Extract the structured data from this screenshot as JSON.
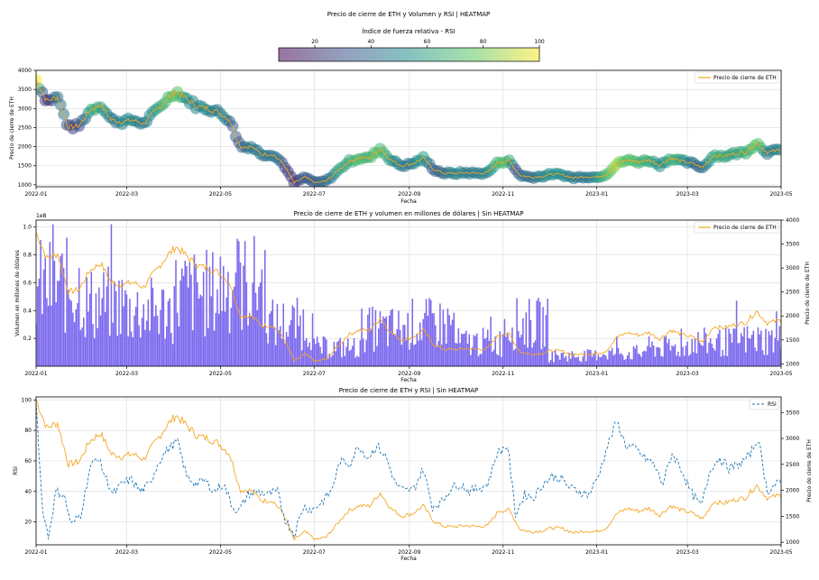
{
  "figure": {
    "suptitle": "Precio de cierre de ETH y Volumen y RSI | HEATMAP"
  },
  "colorbar": {
    "label": "Índice de fuerza relativa - RSI",
    "ticks": [
      "20",
      "40",
      "60",
      "80",
      "100"
    ],
    "range": [
      0,
      100
    ],
    "colormap": "viridis",
    "alpha": 0.55
  },
  "x_ticks": [
    "2022-01",
    "2022-03",
    "2022-05",
    "2022-07",
    "2022-09",
    "2022-11",
    "2023-01",
    "2023-03",
    "2023-05"
  ],
  "chart_data": [
    {
      "id": "heatmap_price",
      "type": "scatter",
      "title": "",
      "xlabel": "Fecha",
      "ylabel": "Precio de cierre de ETH",
      "xlim": [
        "2022-01-01",
        "2023-05-01"
      ],
      "ylim": [
        950,
        4000
      ],
      "y_ticks": [
        "1000",
        "1500",
        "2000",
        "2500",
        "3000",
        "3500",
        "4000"
      ],
      "legend": {
        "position": "top-right",
        "entries": [
          "Precio de cierre de ETH"
        ]
      },
      "grid": true,
      "series": [
        {
          "name": "Precio de cierre de ETH",
          "color": "#f5a623",
          "mark": "line"
        },
        {
          "marker": "circle",
          "color_by": "RSI"
        }
      ],
      "note": "price points colored by RSI (see rsi_price series)"
    },
    {
      "id": "volume_price",
      "type": "bar",
      "title": "Precio de cierre de ETH y volumen en millones de dólares | Sin HEATMAP",
      "xlabel": "Fecha",
      "ylabel": "Volumen en millones de dólares",
      "y2label": "Precio de cierre de ETH",
      "xlim": [
        "2022-01-01",
        "2023-05-01"
      ],
      "ylim": [
        0,
        105000000.0
      ],
      "y_offset_text": "1e8",
      "y_ticks": [
        "0.2",
        "0.4",
        "0.6",
        "0.8",
        "1.0"
      ],
      "y2lim": [
        950,
        4000
      ],
      "y2_ticks": [
        "1000",
        "1500",
        "2000",
        "2500",
        "3000",
        "3500",
        "4000"
      ],
      "legend": {
        "position": "top-right",
        "entries": [
          "Precio de cierre de ETH"
        ]
      },
      "grid": true,
      "bar_color": "#7b68ee",
      "line_color": "#f5a623",
      "volume_monthly": [
        {
          "month": "2022-01",
          "volume": 60000000.0
        },
        {
          "month": "2022-02",
          "volume": 47000000.0
        },
        {
          "month": "2022-03",
          "volume": 42000000.0
        },
        {
          "month": "2022-04",
          "volume": 55000000.0
        },
        {
          "month": "2022-05",
          "volume": 62000000.0
        },
        {
          "month": "2022-06",
          "volume": 32000000.0
        },
        {
          "month": "2022-07",
          "volume": 14000000.0
        },
        {
          "month": "2022-08",
          "volume": 28000000.0
        },
        {
          "month": "2022-09",
          "volume": 32000000.0
        },
        {
          "month": "2022-10",
          "volume": 18000000.0
        },
        {
          "month": "2022-11",
          "volume": 32000000.0
        },
        {
          "month": "2022-12",
          "volume": 8000000.0
        },
        {
          "month": "2023-01",
          "volume": 10000000.0
        },
        {
          "month": "2023-02",
          "volume": 14000000.0
        },
        {
          "month": "2023-03",
          "volume": 18000000.0
        },
        {
          "month": "2023-04",
          "volume": 20000000.0
        }
      ]
    },
    {
      "id": "rsi_price",
      "type": "line",
      "title": "Precio de cierre de ETH y RSI | Sin HEATMAP",
      "xlabel": "Fecha",
      "ylabel": "RSI",
      "y2label": "Precio de cierre de ETH",
      "xlim": [
        "2022-01-01",
        "2023-05-01"
      ],
      "ylim": [
        5,
        102
      ],
      "y_ticks": [
        "20",
        "40",
        "60",
        "80",
        "100"
      ],
      "y2lim": [
        950,
        3800
      ],
      "y2_ticks": [
        "1000",
        "1500",
        "2000",
        "2500",
        "3000",
        "3500"
      ],
      "legend": {
        "position": "top-right",
        "entries": [
          "RSI"
        ]
      },
      "grid": true,
      "rsi_color": "#1f77b4",
      "price_color": "#f5a623",
      "price": [
        {
          "date": "2022-01-01",
          "v": 3750
        },
        {
          "date": "2022-01-08",
          "v": 3200
        },
        {
          "date": "2022-01-15",
          "v": 3300
        },
        {
          "date": "2022-01-22",
          "v": 2500
        },
        {
          "date": "2022-01-29",
          "v": 2550
        },
        {
          "date": "2022-02-05",
          "v": 2950
        },
        {
          "date": "2022-02-12",
          "v": 3100
        },
        {
          "date": "2022-02-19",
          "v": 2700
        },
        {
          "date": "2022-02-26",
          "v": 2650
        },
        {
          "date": "2022-03-05",
          "v": 2700
        },
        {
          "date": "2022-03-12",
          "v": 2600
        },
        {
          "date": "2022-03-19",
          "v": 2900
        },
        {
          "date": "2022-03-26",
          "v": 3200
        },
        {
          "date": "2022-04-02",
          "v": 3450
        },
        {
          "date": "2022-04-09",
          "v": 3250
        },
        {
          "date": "2022-04-16",
          "v": 3050
        },
        {
          "date": "2022-04-23",
          "v": 3000
        },
        {
          "date": "2022-04-30",
          "v": 2900
        },
        {
          "date": "2022-05-07",
          "v": 2700
        },
        {
          "date": "2022-05-14",
          "v": 2000
        },
        {
          "date": "2022-05-21",
          "v": 2000
        },
        {
          "date": "2022-05-28",
          "v": 1800
        },
        {
          "date": "2022-06-04",
          "v": 1800
        },
        {
          "date": "2022-06-11",
          "v": 1550
        },
        {
          "date": "2022-06-18",
          "v": 1050
        },
        {
          "date": "2022-06-25",
          "v": 1200
        },
        {
          "date": "2022-07-02",
          "v": 1050
        },
        {
          "date": "2022-07-09",
          "v": 1100
        },
        {
          "date": "2022-07-16",
          "v": 1350
        },
        {
          "date": "2022-07-23",
          "v": 1600
        },
        {
          "date": "2022-07-30",
          "v": 1700
        },
        {
          "date": "2022-08-06",
          "v": 1700
        },
        {
          "date": "2022-08-13",
          "v": 1950
        },
        {
          "date": "2022-08-20",
          "v": 1650
        },
        {
          "date": "2022-08-27",
          "v": 1500
        },
        {
          "date": "2022-09-03",
          "v": 1550
        },
        {
          "date": "2022-09-10",
          "v": 1700
        },
        {
          "date": "2022-09-17",
          "v": 1400
        },
        {
          "date": "2022-09-24",
          "v": 1300
        },
        {
          "date": "2022-10-01",
          "v": 1300
        },
        {
          "date": "2022-10-08",
          "v": 1320
        },
        {
          "date": "2022-10-15",
          "v": 1300
        },
        {
          "date": "2022-10-22",
          "v": 1320
        },
        {
          "date": "2022-10-29",
          "v": 1600
        },
        {
          "date": "2022-11-05",
          "v": 1620
        },
        {
          "date": "2022-11-12",
          "v": 1250
        },
        {
          "date": "2022-11-19",
          "v": 1200
        },
        {
          "date": "2022-11-26",
          "v": 1220
        },
        {
          "date": "2022-12-03",
          "v": 1280
        },
        {
          "date": "2022-12-10",
          "v": 1260
        },
        {
          "date": "2022-12-17",
          "v": 1180
        },
        {
          "date": "2022-12-24",
          "v": 1220
        },
        {
          "date": "2022-12-31",
          "v": 1200
        },
        {
          "date": "2023-01-07",
          "v": 1270
        },
        {
          "date": "2023-01-14",
          "v": 1550
        },
        {
          "date": "2023-01-21",
          "v": 1650
        },
        {
          "date": "2023-01-28",
          "v": 1600
        },
        {
          "date": "2023-02-04",
          "v": 1650
        },
        {
          "date": "2023-02-11",
          "v": 1520
        },
        {
          "date": "2023-02-18",
          "v": 1700
        },
        {
          "date": "2023-02-25",
          "v": 1620
        },
        {
          "date": "2023-03-04",
          "v": 1560
        },
        {
          "date": "2023-03-11",
          "v": 1450
        },
        {
          "date": "2023-03-18",
          "v": 1780
        },
        {
          "date": "2023-03-25",
          "v": 1750
        },
        {
          "date": "2023-04-01",
          "v": 1820
        },
        {
          "date": "2023-04-08",
          "v": 1860
        },
        {
          "date": "2023-04-15",
          "v": 2100
        },
        {
          "date": "2023-04-22",
          "v": 1850
        },
        {
          "date": "2023-04-29",
          "v": 1900
        }
      ],
      "rsi": [
        {
          "date": "2022-01-01",
          "v": 100
        },
        {
          "date": "2022-01-05",
          "v": 30
        },
        {
          "date": "2022-01-09",
          "v": 10
        },
        {
          "date": "2022-01-14",
          "v": 40
        },
        {
          "date": "2022-01-19",
          "v": 38
        },
        {
          "date": "2022-01-24",
          "v": 18
        },
        {
          "date": "2022-01-30",
          "v": 25
        },
        {
          "date": "2022-02-05",
          "v": 55
        },
        {
          "date": "2022-02-10",
          "v": 63
        },
        {
          "date": "2022-02-15",
          "v": 50
        },
        {
          "date": "2022-02-20",
          "v": 38
        },
        {
          "date": "2022-02-26",
          "v": 45
        },
        {
          "date": "2022-03-04",
          "v": 48
        },
        {
          "date": "2022-03-10",
          "v": 40
        },
        {
          "date": "2022-03-16",
          "v": 45
        },
        {
          "date": "2022-03-22",
          "v": 60
        },
        {
          "date": "2022-03-28",
          "v": 68
        },
        {
          "date": "2022-04-03",
          "v": 73
        },
        {
          "date": "2022-04-09",
          "v": 50
        },
        {
          "date": "2022-04-15",
          "v": 45
        },
        {
          "date": "2022-04-21",
          "v": 47
        },
        {
          "date": "2022-04-27",
          "v": 40
        },
        {
          "date": "2022-05-03",
          "v": 45
        },
        {
          "date": "2022-05-09",
          "v": 30
        },
        {
          "date": "2022-05-13",
          "v": 27
        },
        {
          "date": "2022-05-19",
          "v": 38
        },
        {
          "date": "2022-05-25",
          "v": 40
        },
        {
          "date": "2022-06-01",
          "v": 38
        },
        {
          "date": "2022-06-07",
          "v": 40
        },
        {
          "date": "2022-06-12",
          "v": 22
        },
        {
          "date": "2022-06-18",
          "v": 12
        },
        {
          "date": "2022-06-24",
          "v": 30
        },
        {
          "date": "2022-06-30",
          "v": 28
        },
        {
          "date": "2022-07-06",
          "v": 33
        },
        {
          "date": "2022-07-12",
          "v": 40
        },
        {
          "date": "2022-07-18",
          "v": 60
        },
        {
          "date": "2022-07-24",
          "v": 58
        },
        {
          "date": "2022-07-30",
          "v": 70
        },
        {
          "date": "2022-08-05",
          "v": 62
        },
        {
          "date": "2022-08-11",
          "v": 70
        },
        {
          "date": "2022-08-17",
          "v": 62
        },
        {
          "date": "2022-08-23",
          "v": 45
        },
        {
          "date": "2022-08-29",
          "v": 40
        },
        {
          "date": "2022-09-04",
          "v": 42
        },
        {
          "date": "2022-09-10",
          "v": 55
        },
        {
          "date": "2022-09-16",
          "v": 30
        },
        {
          "date": "2022-09-22",
          "v": 33
        },
        {
          "date": "2022-09-28",
          "v": 42
        },
        {
          "date": "2022-10-04",
          "v": 45
        },
        {
          "date": "2022-10-10",
          "v": 40
        },
        {
          "date": "2022-10-16",
          "v": 42
        },
        {
          "date": "2022-10-22",
          "v": 45
        },
        {
          "date": "2022-10-28",
          "v": 65
        },
        {
          "date": "2022-11-04",
          "v": 70
        },
        {
          "date": "2022-11-09",
          "v": 25
        },
        {
          "date": "2022-11-15",
          "v": 38
        },
        {
          "date": "2022-11-21",
          "v": 36
        },
        {
          "date": "2022-11-27",
          "v": 45
        },
        {
          "date": "2022-12-03",
          "v": 50
        },
        {
          "date": "2022-12-09",
          "v": 48
        },
        {
          "date": "2022-12-15",
          "v": 42
        },
        {
          "date": "2022-12-21",
          "v": 40
        },
        {
          "date": "2022-12-27",
          "v": 38
        },
        {
          "date": "2023-01-02",
          "v": 50
        },
        {
          "date": "2023-01-08",
          "v": 70
        },
        {
          "date": "2023-01-14",
          "v": 86
        },
        {
          "date": "2023-01-20",
          "v": 70
        },
        {
          "date": "2023-01-26",
          "v": 68
        },
        {
          "date": "2023-02-01",
          "v": 62
        },
        {
          "date": "2023-02-07",
          "v": 58
        },
        {
          "date": "2023-02-13",
          "v": 45
        },
        {
          "date": "2023-02-19",
          "v": 65
        },
        {
          "date": "2023-02-25",
          "v": 55
        },
        {
          "date": "2023-03-03",
          "v": 40
        },
        {
          "date": "2023-03-10",
          "v": 30
        },
        {
          "date": "2023-03-16",
          "v": 55
        },
        {
          "date": "2023-03-22",
          "v": 62
        },
        {
          "date": "2023-03-28",
          "v": 55
        },
        {
          "date": "2023-04-04",
          "v": 58
        },
        {
          "date": "2023-04-10",
          "v": 63
        },
        {
          "date": "2023-04-16",
          "v": 75
        },
        {
          "date": "2023-04-22",
          "v": 40
        },
        {
          "date": "2023-04-28",
          "v": 45
        }
      ]
    }
  ]
}
